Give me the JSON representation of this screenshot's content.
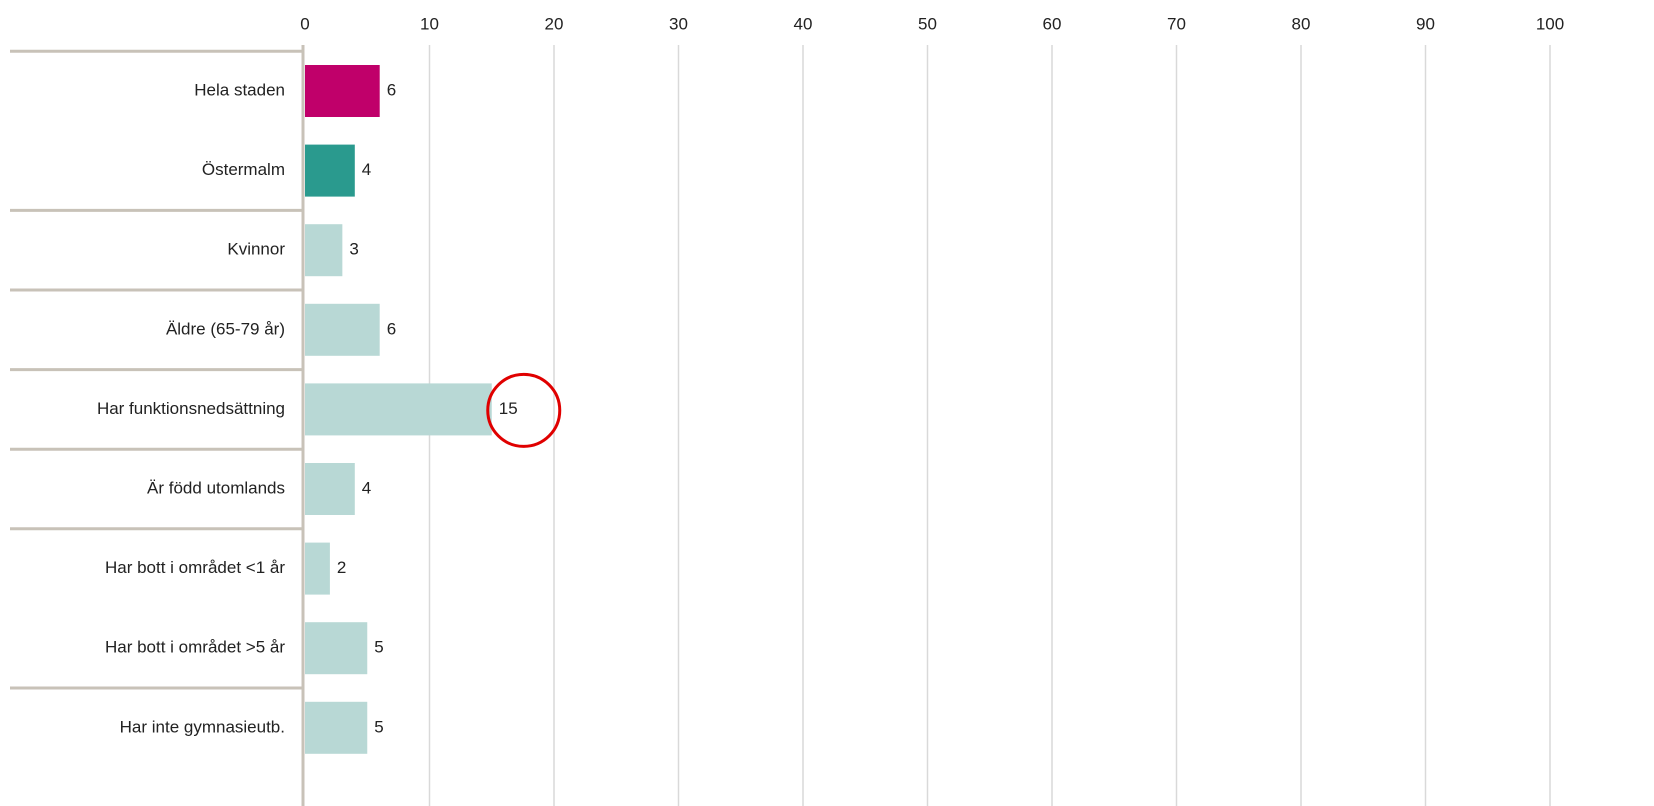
{
  "chart_data": {
    "type": "barh",
    "categories": [
      "Hela staden",
      "Östermalm",
      "Kvinnor",
      "Äldre (65-79 år)",
      "Har funktionsnedsättning",
      "Är född utomlands",
      "Har bott i området <1 år",
      "Har bott i området >5 år",
      "Har inte gymnasieutb."
    ],
    "values": [
      6,
      4,
      3,
      6,
      15,
      4,
      2,
      5,
      5
    ],
    "colors": [
      "#c0006a",
      "#2a9a8e",
      "#b8d8d5",
      "#b8d8d5",
      "#b8d8d5",
      "#b8d8d5",
      "#b8d8d5",
      "#b8d8d5",
      "#b8d8d5"
    ],
    "xlim": [
      0,
      100
    ],
    "xticks": [
      0,
      10,
      20,
      30,
      40,
      50,
      60,
      70,
      80,
      90,
      100
    ],
    "grid": true
  }
}
